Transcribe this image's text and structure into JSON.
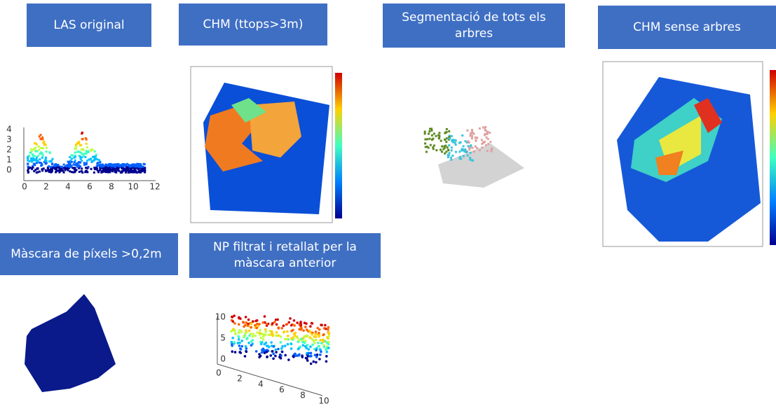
{
  "panels": [
    {
      "title": "LAS original"
    },
    {
      "title": "CHM (ttops>3m)"
    },
    {
      "title": "Segmentació de tots els arbres"
    },
    {
      "title": "CHM sense arbres"
    },
    {
      "title": "Màscara de píxels >0,2m"
    },
    {
      "title": "NP filtrat i retallat per la màscara anterior"
    }
  ],
  "plots": {
    "las_original": {
      "yticks": [
        4,
        3,
        2,
        1,
        0
      ],
      "xticks": [
        0,
        2,
        4,
        6,
        8,
        10,
        12
      ]
    },
    "np_filtrat": {
      "zticks": [
        10,
        5,
        0
      ],
      "xticks": [
        0,
        2,
        4,
        6,
        8,
        10
      ]
    }
  }
}
